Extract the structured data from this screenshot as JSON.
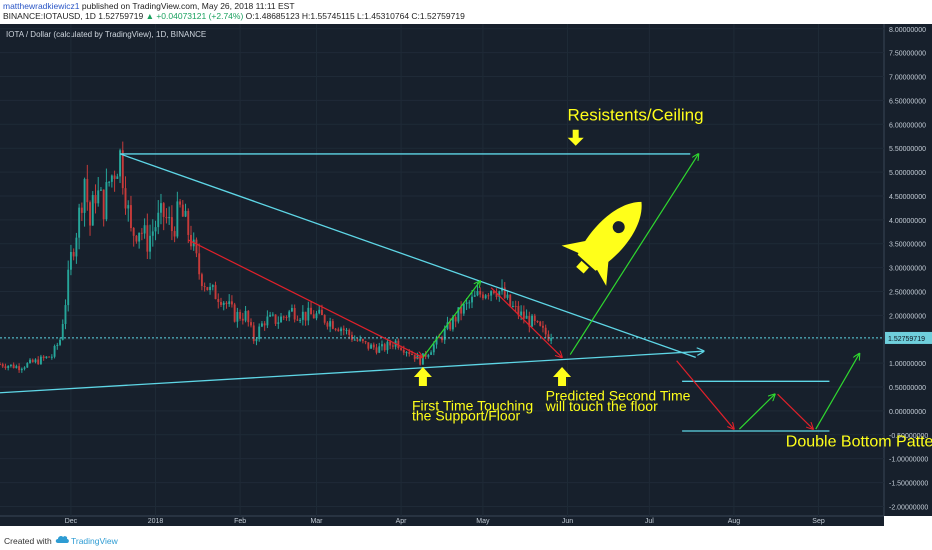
{
  "header": {
    "author": "matthewradkiewicz1",
    "published_text": "published on TradingView.com, May 26, 2018 11:11 EST",
    "symbol_line": "BINANCE:IOTAUSD, 1D",
    "close_value": "1.52759719",
    "change_text": "▲ +0.04073121 (+2.74%)",
    "ohlc_text": "O:1.48685123 H:1.55745115 L:1.45310764 C:1.52759719"
  },
  "colors": {
    "background": "#17202c",
    "up_candle": "#26a69a",
    "down_candle": "#c63b3a",
    "trendline": "#5ed6e6",
    "arrow_red": "#e0202a",
    "arrow_green": "#2fd82f",
    "annotation": "#ffff1a",
    "price_tag": "#6fcfdc",
    "link_blue": "#2a56c6"
  },
  "chart_data": {
    "type": "candlestick",
    "title": "IOTA / Dollar (calculated by TradingView), 1D, BINANCE",
    "x_range": [
      "2017-11-05",
      "2018-09-25"
    ],
    "y_range": [
      -2.2,
      8.1
    ],
    "y_ticks": [
      "8.00000000",
      "7.50000000",
      "7.00000000",
      "6.50000000",
      "6.00000000",
      "5.50000000",
      "5.00000000",
      "4.50000000",
      "4.00000000",
      "3.50000000",
      "3.00000000",
      "2.50000000",
      "2.00000000",
      "1.50000000",
      "1.00000000",
      "0.50000000",
      "0.00000000",
      "-0.50000000",
      "-1.00000000",
      "-1.50000000",
      "-2.00000000"
    ],
    "x_ticks": [
      {
        "date": "2017-12-01",
        "label": "Dec"
      },
      {
        "date": "2018-01-01",
        "label": "2018"
      },
      {
        "date": "2018-02-01",
        "label": "Feb"
      },
      {
        "date": "2018-03-01",
        "label": "Mar"
      },
      {
        "date": "2018-04-01",
        "label": "Apr"
      },
      {
        "date": "2018-05-01",
        "label": "May"
      },
      {
        "date": "2018-06-01",
        "label": "Jun"
      },
      {
        "date": "2018-07-01",
        "label": "Jul"
      },
      {
        "date": "2018-08-01",
        "label": "Aug"
      },
      {
        "date": "2018-09-01",
        "label": "Sep"
      }
    ],
    "last_price": "1.52759719",
    "price_path": [
      [
        "2017-11-05",
        0.98
      ],
      [
        "2017-11-12",
        0.92
      ],
      [
        "2017-11-19",
        1.05
      ],
      [
        "2017-11-24",
        1.15
      ],
      [
        "2017-11-27",
        1.5
      ],
      [
        "2017-11-29",
        2.3
      ],
      [
        "2017-12-01",
        3.2
      ],
      [
        "2017-12-04",
        4.1
      ],
      [
        "2017-12-06",
        4.9
      ],
      [
        "2017-12-08",
        3.9
      ],
      [
        "2017-12-10",
        4.6
      ],
      [
        "2017-12-13",
        4.3
      ],
      [
        "2017-12-15",
        4.8
      ],
      [
        "2017-12-19",
        5.35
      ],
      [
        "2017-12-21",
        4.6
      ],
      [
        "2017-12-23",
        3.7
      ],
      [
        "2017-12-26",
        3.85
      ],
      [
        "2017-12-29",
        3.55
      ],
      [
        "2018-01-01",
        3.9
      ],
      [
        "2018-01-04",
        4.1
      ],
      [
        "2018-01-07",
        3.8
      ],
      [
        "2018-01-10",
        4.2
      ],
      [
        "2018-01-14",
        3.6
      ],
      [
        "2018-01-17",
        2.9
      ],
      [
        "2018-01-21",
        2.5
      ],
      [
        "2018-01-25",
        2.4
      ],
      [
        "2018-01-30",
        2.0
      ],
      [
        "2018-02-03",
        2.0
      ],
      [
        "2018-02-06",
        1.5
      ],
      [
        "2018-02-10",
        1.9
      ],
      [
        "2018-02-15",
        1.9
      ],
      [
        "2018-02-20",
        2.1
      ],
      [
        "2018-02-25",
        2.0
      ],
      [
        "2018-03-01",
        2.0
      ],
      [
        "2018-03-05",
        1.9
      ],
      [
        "2018-03-10",
        1.75
      ],
      [
        "2018-03-15",
        1.5
      ],
      [
        "2018-03-20",
        1.35
      ],
      [
        "2018-03-25",
        1.3
      ],
      [
        "2018-03-30",
        1.45
      ],
      [
        "2018-04-05",
        1.2
      ],
      [
        "2018-04-08",
        1.05
      ],
      [
        "2018-04-11",
        1.25
      ],
      [
        "2018-04-15",
        1.5
      ],
      [
        "2018-04-19",
        1.8
      ],
      [
        "2018-04-23",
        2.1
      ],
      [
        "2018-04-27",
        2.3
      ],
      [
        "2018-05-01",
        2.5
      ],
      [
        "2018-05-05",
        2.6
      ],
      [
        "2018-05-08",
        2.45
      ],
      [
        "2018-05-11",
        2.2
      ],
      [
        "2018-05-15",
        2.0
      ],
      [
        "2018-05-19",
        1.85
      ],
      [
        "2018-05-23",
        1.65
      ],
      [
        "2018-05-26",
        1.53
      ]
    ],
    "trendlines": [
      {
        "name": "resistance-line",
        "from": [
          "2017-12-19",
          5.38
        ],
        "to": [
          "2018-07-16",
          5.38
        ]
      },
      {
        "name": "descending-line",
        "from": [
          "2017-12-19",
          5.38
        ],
        "to": [
          "2018-07-18",
          1.12
        ]
      },
      {
        "name": "ascending-support-line",
        "from": [
          "2017-11-05",
          0.38
        ],
        "to": [
          "2018-07-21",
          1.25
        ],
        "arrow": true
      },
      {
        "name": "price-line",
        "from": [
          "2017-11-05",
          1.53
        ],
        "to": [
          "2018-09-25",
          1.53
        ],
        "dashed": true
      },
      {
        "name": "double-bottom-neckline",
        "from": [
          "2018-07-13",
          0.62
        ],
        "to": [
          "2018-09-05",
          0.62
        ]
      },
      {
        "name": "double-bottom-floor",
        "from": [
          "2018-07-13",
          -0.42
        ],
        "to": [
          "2018-09-05",
          -0.42
        ]
      }
    ],
    "arrows": [
      {
        "name": "red-arrow-jan-apr",
        "color": "red",
        "from": [
          "2018-01-13",
          3.58
        ],
        "to": [
          "2018-04-09",
          1.12
        ]
      },
      {
        "name": "green-arrow-apr-may",
        "color": "green",
        "from": [
          "2018-04-09",
          1.12
        ],
        "to": [
          "2018-04-30",
          2.72
        ]
      },
      {
        "name": "red-arrow-may-jun",
        "color": "red",
        "from": [
          "2018-05-04",
          2.58
        ],
        "to": [
          "2018-05-30",
          1.12
        ]
      },
      {
        "name": "green-arrow-target",
        "color": "green",
        "from": [
          "2018-06-02",
          1.18
        ],
        "to": [
          "2018-07-19",
          5.38
        ]
      },
      {
        "name": "red-arrow-drop-1",
        "color": "red",
        "from": [
          "2018-07-11",
          1.05
        ],
        "to": [
          "2018-08-01",
          -0.38
        ]
      },
      {
        "name": "green-arrow-bounce",
        "color": "green",
        "from": [
          "2018-08-03",
          -0.38
        ],
        "to": [
          "2018-08-16",
          0.35
        ]
      },
      {
        "name": "red-arrow-drop-2",
        "color": "red",
        "from": [
          "2018-08-17",
          0.35
        ],
        "to": [
          "2018-08-30",
          -0.38
        ]
      },
      {
        "name": "green-arrow-breakout",
        "color": "green",
        "from": [
          "2018-08-31",
          -0.38
        ],
        "to": [
          "2018-09-16",
          1.2
        ]
      }
    ],
    "annotations": [
      {
        "name": "resistance-label",
        "text": "Resistents/Ceiling",
        "at": [
          "2018-06-01",
          6.08
        ],
        "size": 17
      },
      {
        "name": "first-touch-label-1",
        "text": "First Time Touching",
        "at": [
          "2018-04-05",
          0.01
        ],
        "size": 14
      },
      {
        "name": "first-touch-label-2",
        "text": "the Support/Floor",
        "at": [
          "2018-04-05",
          -0.2
        ],
        "size": 14
      },
      {
        "name": "second-touch-label-1",
        "text": "Predicted Second Time",
        "at": [
          "2018-05-24",
          0.22
        ],
        "size": 14
      },
      {
        "name": "second-touch-label-2",
        "text": "will touch the floor",
        "at": [
          "2018-05-24",
          0.0
        ],
        "size": 14
      },
      {
        "name": "double-bottom-label",
        "text": "Double Bottom Pattern",
        "at": [
          "2018-08-20",
          -0.75
        ],
        "size": 16
      }
    ]
  },
  "footer": {
    "created_with": "Created with",
    "brand": "TradingView"
  }
}
